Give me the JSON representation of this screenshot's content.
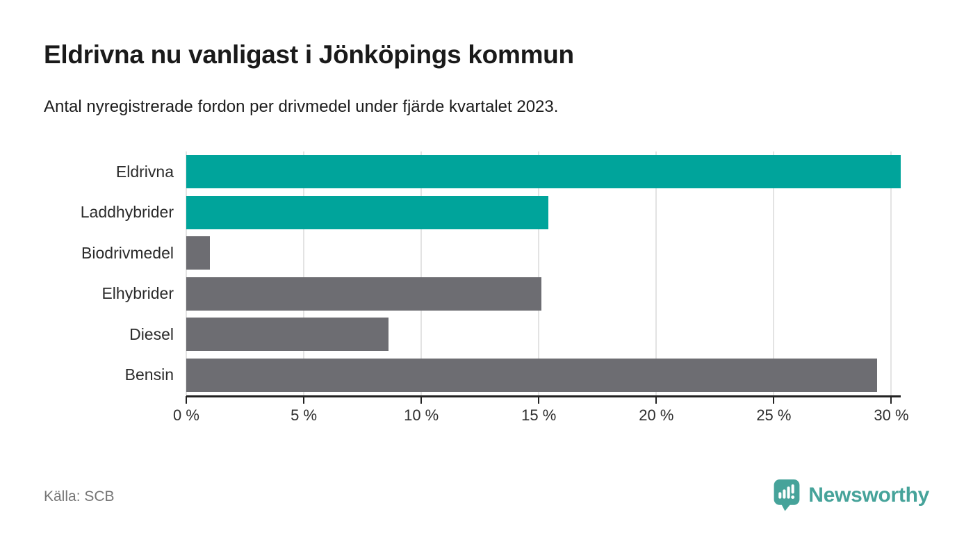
{
  "header": {
    "title": "Eldrivna nu vanligast i Jönköpings kommun",
    "subtitle": "Antal nyregistrerade fordon per drivmedel under fjärde kvartalet 2023."
  },
  "footer": {
    "source": "Källa: SCB",
    "logo_text": "Newsworthy"
  },
  "colors": {
    "accent_teal": "#00a49b",
    "bar_gray": "#6d6d72",
    "gridline": "#e3e3e3",
    "axis": "#222222",
    "logo_teal": "#46a39a"
  },
  "chart_data": {
    "type": "bar",
    "orientation": "horizontal",
    "title": "Eldrivna nu vanligast i Jönköpings kommun",
    "subtitle": "Antal nyregistrerade fordon per drivmedel under fjärde kvartalet 2023.",
    "categories": [
      "Eldrivna",
      "Laddhybrider",
      "Biodrivmedel",
      "Elhybrider",
      "Diesel",
      "Bensin"
    ],
    "values": [
      30.4,
      15.4,
      1.0,
      15.1,
      8.6,
      29.4
    ],
    "unit": "%",
    "bar_colors": [
      "#00a49b",
      "#00a49b",
      "#6d6d72",
      "#6d6d72",
      "#6d6d72",
      "#6d6d72"
    ],
    "xlim": [
      0,
      30.4
    ],
    "grid": true,
    "legend": "none",
    "ticks": [
      {
        "value": 0,
        "label": "0 %"
      },
      {
        "value": 5,
        "label": "5 %"
      },
      {
        "value": 10,
        "label": "10 %"
      },
      {
        "value": 15,
        "label": "15 %"
      },
      {
        "value": 20,
        "label": "20 %"
      },
      {
        "value": 25,
        "label": "25 %"
      },
      {
        "value": 30,
        "label": "30 %"
      }
    ]
  }
}
